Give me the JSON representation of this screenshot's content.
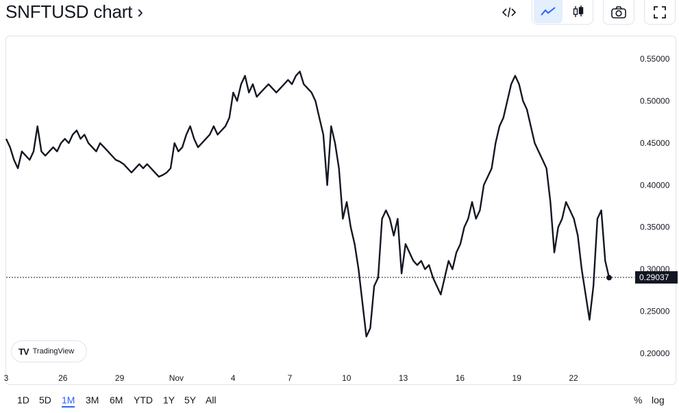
{
  "header": {
    "title": "SNFTUSD chart ›",
    "embed_icon": "code-icon",
    "line_icon": "line-chart-icon",
    "candle_icon": "candlestick-icon",
    "snapshot_icon": "camera-icon",
    "fullscreen_icon": "fullscreen-icon",
    "active_style": "line"
  },
  "watermark": {
    "mark": "TV",
    "label": "TradingView"
  },
  "ranges": [
    "1D",
    "5D",
    "1M",
    "3M",
    "6M",
    "YTD",
    "1Y",
    "5Y",
    "All"
  ],
  "active_range": "1M",
  "scale_options": [
    "%",
    "log"
  ],
  "colors": {
    "line": "#131722",
    "accent": "#2962ff",
    "badge": "#131722",
    "grid_border": "#e0e3eb"
  },
  "chart_data": {
    "type": "line",
    "symbol": "SNFTUSD",
    "x_ticks": [
      "3",
      "26",
      "29",
      "Nov",
      "4",
      "7",
      "10",
      "13",
      "16",
      "19",
      "22"
    ],
    "y_ticks": [
      "0.55000",
      "0.50000",
      "0.45000",
      "0.40000",
      "0.35000",
      "0.30000",
      "0.25000",
      "0.20000"
    ],
    "ylim": [
      0.19,
      0.57
    ],
    "last_price": "0.29037",
    "last_value": 0.29037,
    "series": [
      {
        "values": [
          0.455,
          0.445,
          0.43,
          0.42,
          0.44,
          0.435,
          0.43,
          0.44,
          0.47,
          0.44,
          0.435,
          0.44,
          0.445,
          0.44,
          0.45,
          0.455,
          0.45,
          0.46,
          0.465,
          0.455,
          0.46,
          0.45,
          0.445,
          0.44,
          0.45,
          0.445,
          0.44,
          0.435,
          0.43,
          0.428,
          0.425,
          0.42,
          0.415,
          0.42,
          0.425,
          0.42,
          0.425,
          0.42,
          0.415,
          0.41,
          0.412,
          0.415,
          0.42,
          0.45,
          0.44,
          0.445,
          0.46,
          0.47,
          0.455,
          0.445,
          0.45,
          0.455,
          0.46,
          0.47,
          0.46,
          0.465,
          0.47,
          0.48,
          0.51,
          0.5,
          0.52,
          0.53,
          0.51,
          0.52,
          0.505,
          0.51,
          0.515,
          0.52,
          0.515,
          0.51,
          0.515,
          0.52,
          0.525,
          0.52,
          0.53,
          0.535,
          0.52,
          0.515,
          0.51,
          0.5,
          0.48,
          0.46,
          0.4,
          0.47,
          0.45,
          0.42,
          0.36,
          0.38,
          0.35,
          0.33,
          0.3,
          0.26,
          0.22,
          0.23,
          0.28,
          0.29,
          0.36,
          0.37,
          0.36,
          0.34,
          0.36,
          0.295,
          0.33,
          0.32,
          0.31,
          0.305,
          0.31,
          0.3,
          0.305,
          0.29,
          0.28,
          0.27,
          0.29,
          0.31,
          0.3,
          0.32,
          0.33,
          0.35,
          0.36,
          0.38,
          0.36,
          0.37,
          0.4,
          0.41,
          0.42,
          0.45,
          0.47,
          0.48,
          0.5,
          0.52,
          0.53,
          0.52,
          0.5,
          0.49,
          0.47,
          0.45,
          0.44,
          0.43,
          0.42,
          0.38,
          0.32,
          0.35,
          0.36,
          0.38,
          0.37,
          0.36,
          0.34,
          0.3,
          0.27,
          0.24,
          0.28,
          0.36,
          0.37,
          0.31,
          0.29
        ]
      }
    ]
  }
}
